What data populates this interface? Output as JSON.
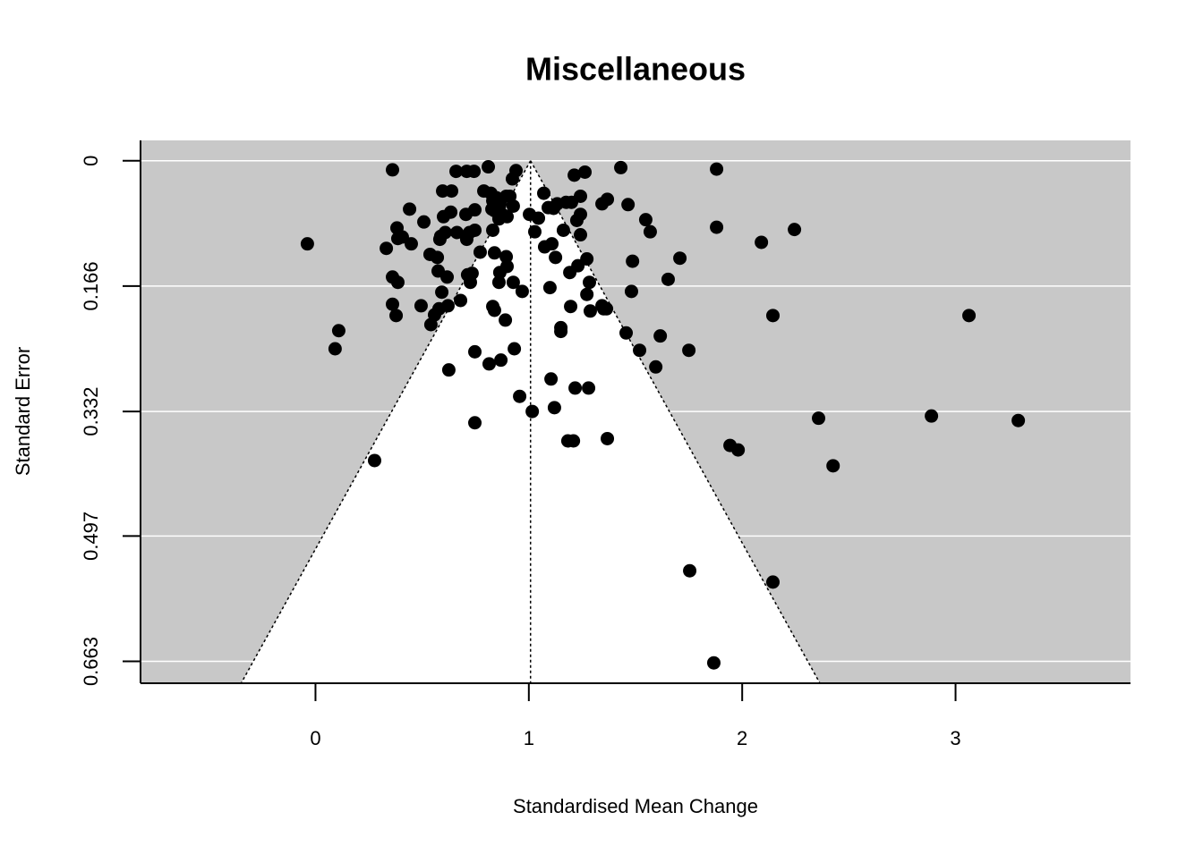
{
  "chart_data": {
    "type": "scatter",
    "title": "Miscellaneous",
    "x_label": "Standardised Mean Change",
    "y_label": "Standard Error",
    "xlim": [
      -0.82,
      3.82
    ],
    "ylim": [
      -0.027,
      0.692
    ],
    "y_reversed": true,
    "xticks": [
      0,
      1,
      2,
      3
    ],
    "yticks": [
      0,
      0.166,
      0.332,
      0.497,
      0.663
    ],
    "grid": true,
    "background": "#c8c8c8",
    "grid_color": "#ffffff",
    "color": "#000000",
    "funnel_center": 1.008,
    "funnel_multiplier": 1.96,
    "x": [
      -0.038,
      0.109,
      0.092,
      0.277,
      0.361,
      0.332,
      0.382,
      0.386,
      0.407,
      0.449,
      0.441,
      0.361,
      0.386,
      0.361,
      0.378,
      0.495,
      0.508,
      0.537,
      0.571,
      0.575,
      0.587,
      0.596,
      0.583,
      0.6,
      0.608,
      0.617,
      0.638,
      0.634,
      0.659,
      0.663,
      0.68,
      0.592,
      0.579,
      0.558,
      0.541,
      0.621,
      0.625,
      0.709,
      0.743,
      0.705,
      0.722,
      0.709,
      0.726,
      0.713,
      0.734,
      0.747,
      0.747,
      0.772,
      0.789,
      0.81,
      0.822,
      0.831,
      0.839,
      0.831,
      0.827,
      0.839,
      0.831,
      0.839,
      0.864,
      0.86,
      0.848,
      0.86,
      0.864,
      0.881,
      0.894,
      0.894,
      0.898,
      0.898,
      0.923,
      0.911,
      0.927,
      0.94,
      0.927,
      0.969,
      0.89,
      0.932,
      0.869,
      0.814,
      0.747,
      0.747,
      0.957,
      1.016,
      1.003,
      1.028,
      1.045,
      1.07,
      1.091,
      1.116,
      1.074,
      1.108,
      1.125,
      1.099,
      1.133,
      1.162,
      1.175,
      1.2,
      1.213,
      1.225,
      1.242,
      1.242,
      1.242,
      1.192,
      1.196,
      1.23,
      1.263,
      1.272,
      1.272,
      1.284,
      1.288,
      1.351,
      1.343,
      1.364,
      1.343,
      1.368,
      1.431,
      1.465,
      1.548,
      1.569,
      1.486,
      1.708,
      1.653,
      1.481,
      1.456,
      1.15,
      1.15,
      1.616,
      1.519,
      1.75,
      1.595,
      1.104,
      1.217,
      1.28,
      1.12,
      1.183,
      1.209,
      1.368,
      1.88,
      1.88,
      2.09,
      2.245,
      2.144,
      3.063,
      2.358,
      2.887,
      3.294,
      2.426,
      1.943,
      1.981,
      1.754,
      2.144,
      1.867
    ],
    "y": [
      0.11,
      0.225,
      0.249,
      0.397,
      0.012,
      0.116,
      0.089,
      0.103,
      0.101,
      0.11,
      0.064,
      0.154,
      0.161,
      0.19,
      0.205,
      0.192,
      0.081,
      0.124,
      0.128,
      0.146,
      0.1,
      0.04,
      0.104,
      0.074,
      0.095,
      0.154,
      0.04,
      0.068,
      0.014,
      0.095,
      0.185,
      0.174,
      0.196,
      0.204,
      0.217,
      0.192,
      0.277,
      0.014,
      0.014,
      0.071,
      0.095,
      0.104,
      0.161,
      0.151,
      0.149,
      0.065,
      0.092,
      0.121,
      0.04,
      0.008,
      0.043,
      0.053,
      0.122,
      0.092,
      0.064,
      0.066,
      0.193,
      0.198,
      0.148,
      0.161,
      0.049,
      0.077,
      0.059,
      0.072,
      0.127,
      0.047,
      0.14,
      0.074,
      0.024,
      0.047,
      0.06,
      0.013,
      0.161,
      0.173,
      0.211,
      0.249,
      0.264,
      0.269,
      0.253,
      0.347,
      0.312,
      0.332,
      0.071,
      0.094,
      0.076,
      0.043,
      0.062,
      0.063,
      0.114,
      0.11,
      0.128,
      0.168,
      0.057,
      0.092,
      0.055,
      0.055,
      0.019,
      0.079,
      0.047,
      0.098,
      0.071,
      0.148,
      0.193,
      0.139,
      0.015,
      0.13,
      0.177,
      0.161,
      0.199,
      0.196,
      0.192,
      0.196,
      0.057,
      0.051,
      0.009,
      0.058,
      0.078,
      0.094,
      0.133,
      0.129,
      0.157,
      0.173,
      0.228,
      0.221,
      0.226,
      0.232,
      0.251,
      0.251,
      0.273,
      0.289,
      0.301,
      0.301,
      0.327,
      0.371,
      0.371,
      0.368,
      0.011,
      0.088,
      0.108,
      0.091,
      0.205,
      0.205,
      0.341,
      0.338,
      0.344,
      0.404,
      0.377,
      0.383,
      0.543,
      0.558,
      0.665
    ]
  }
}
